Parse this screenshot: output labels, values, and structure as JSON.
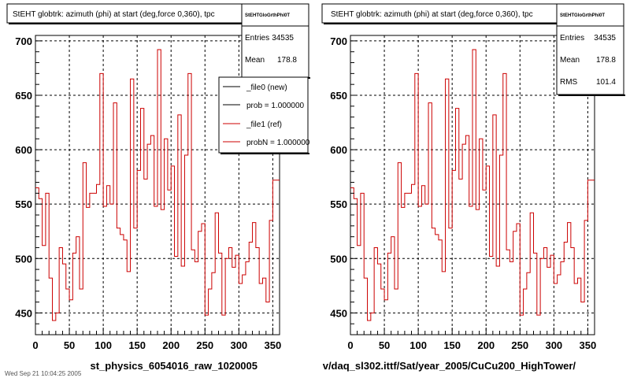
{
  "panels": [
    {
      "title": "StEHT globtrk: azimuth (phi) at start (deg,force 0,360), tpc",
      "xlabel": "st_physics_6054016_raw_1020005",
      "stats": {
        "name": "StEHTGloGrthPhi0T",
        "rows": [
          {
            "label": "Entries",
            "value": "34535"
          },
          {
            "label": "Mean",
            "value": "178.8"
          }
        ]
      },
      "legend": [
        "_file0 (new)",
        "prob = 1.000000",
        "_file1 (ref)",
        "probN = 1.000000"
      ],
      "legend_colors": [
        "#000000",
        "#000000",
        "#cc0000",
        "#cc0000"
      ]
    },
    {
      "title": "StEHT globtrk: azimuth (phi) at start (deg,force 0,360), tpc",
      "xlabel": "v/daq_sl302.ittf/Sat/year_2005/CuCu200_HighTower/",
      "stats": {
        "name": "StEHTGloGrthPhi0T",
        "rows": [
          {
            "label": "Entries",
            "value": "34535"
          },
          {
            "label": "Mean",
            "value": "178.8"
          },
          {
            "label": "RMS",
            "value": "101.4"
          }
        ]
      }
    }
  ],
  "footer_text": "Wed Sep 21 10:04:25 2005",
  "chart_data": {
    "type": "line",
    "xlim": [
      0,
      360
    ],
    "ylim": [
      430,
      705
    ],
    "xticks": [
      0,
      50,
      100,
      150,
      200,
      250,
      300,
      350
    ],
    "yticks": [
      450,
      500,
      550,
      600,
      650,
      700
    ],
    "grid": true,
    "line_color": "#cc0000",
    "bin_edges": [
      0,
      5,
      10,
      15,
      20,
      25,
      30,
      35,
      40,
      45,
      50,
      55,
      60,
      65,
      70,
      75,
      80,
      85,
      90,
      95,
      100,
      105,
      110,
      115,
      120,
      125,
      130,
      135,
      140,
      145,
      150,
      155,
      160,
      165,
      170,
      175,
      180,
      185,
      190,
      195,
      200,
      205,
      210,
      215,
      220,
      225,
      230,
      235,
      240,
      245,
      250,
      255,
      260,
      265,
      270,
      275,
      280,
      285,
      290,
      295,
      300,
      305,
      310,
      315,
      320,
      325,
      330,
      335,
      340,
      345,
      350,
      355,
      360
    ],
    "values": [
      565,
      555,
      512,
      560,
      482,
      443,
      450,
      510,
      495,
      472,
      462,
      505,
      520,
      472,
      588,
      547,
      560,
      560,
      568,
      670,
      548,
      567,
      550,
      643,
      528,
      522,
      517,
      488,
      665,
      528,
      581,
      638,
      573,
      605,
      613,
      548,
      692,
      545,
      610,
      563,
      585,
      502,
      632,
      493,
      595,
      670,
      508,
      497,
      525,
      532,
      448,
      472,
      487,
      542,
      505,
      448,
      500,
      510,
      492,
      503,
      477,
      485,
      497,
      515,
      533,
      510,
      477,
      482,
      460,
      535,
      572,
      572
    ]
  }
}
